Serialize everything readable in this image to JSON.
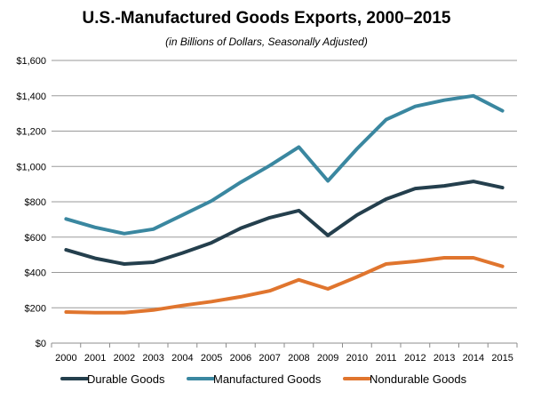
{
  "chart_data": {
    "type": "line",
    "title": "U.S.-Manufactured Goods Exports, 2000–2015",
    "subtitle": "(in Billions of Dollars, Seasonally Adjusted)",
    "xlabel": "",
    "ylabel": "",
    "categories": [
      "2000",
      "2001",
      "2002",
      "2003",
      "2004",
      "2005",
      "2006",
      "2007",
      "2008",
      "2009",
      "2010",
      "2011",
      "2012",
      "2013",
      "2014",
      "2015"
    ],
    "ylim": [
      0,
      1600
    ],
    "yticks": [
      0,
      200,
      400,
      600,
      800,
      1000,
      1200,
      1400,
      1600
    ],
    "ytick_labels": [
      "$0",
      "$200",
      "$400",
      "$600",
      "$800",
      "$1,000",
      "$1,200",
      "$1,400",
      "$1,600"
    ],
    "grid": true,
    "legend_position": "bottom",
    "series": [
      {
        "name": "Durable Goods",
        "color": "#243f4d",
        "values": [
          528,
          480,
          448,
          458,
          510,
          568,
          650,
          710,
          750,
          610,
          725,
          815,
          875,
          890,
          915,
          880
        ]
      },
      {
        "name": "Manufactured Goods",
        "color": "#3a87a0",
        "values": [
          703,
          655,
          620,
          645,
          725,
          805,
          910,
          1005,
          1110,
          918,
          1100,
          1265,
          1340,
          1375,
          1400,
          1315
        ]
      },
      {
        "name": "Nondurable Goods",
        "color": "#e0752e",
        "values": [
          176,
          172,
          172,
          187,
          213,
          235,
          262,
          296,
          358,
          307,
          375,
          448,
          463,
          483,
          483,
          434
        ]
      }
    ]
  }
}
